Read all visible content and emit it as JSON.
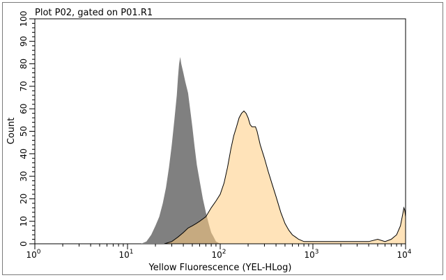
{
  "chart_data": {
    "type": "area",
    "title": "Plot P02, gated on P01.R1",
    "xlabel": "Yellow Fluorescence (YEL-HLog)",
    "ylabel": "Count",
    "x_scale": "log",
    "xlim": [
      1,
      10000
    ],
    "ylim": [
      0,
      100
    ],
    "x_ticks": [
      {
        "value": 1,
        "base": "10",
        "exp": "0"
      },
      {
        "value": 10,
        "base": "10",
        "exp": "1"
      },
      {
        "value": 100,
        "base": "10",
        "exp": "2"
      },
      {
        "value": 1000,
        "base": "10",
        "exp": "3"
      },
      {
        "value": 10000,
        "base": "10",
        "exp": "4"
      }
    ],
    "y_ticks": [
      0,
      10,
      20,
      30,
      40,
      50,
      60,
      70,
      80,
      90,
      100
    ],
    "grid": false,
    "series": [
      {
        "color": "#808080",
        "outline": false,
        "points": [
          [
            10,
            0
          ],
          [
            14,
            0
          ],
          [
            16,
            1
          ],
          [
            18,
            4
          ],
          [
            20,
            8
          ],
          [
            22,
            12
          ],
          [
            24,
            18
          ],
          [
            26,
            25
          ],
          [
            28,
            34
          ],
          [
            30,
            44
          ],
          [
            32,
            55
          ],
          [
            34,
            66
          ],
          [
            35,
            74
          ],
          [
            36,
            80
          ],
          [
            37,
            83
          ],
          [
            38,
            80
          ],
          [
            40,
            76
          ],
          [
            42,
            72
          ],
          [
            45,
            67
          ],
          [
            48,
            58
          ],
          [
            50,
            52
          ],
          [
            53,
            43
          ],
          [
            56,
            35
          ],
          [
            60,
            28
          ],
          [
            65,
            20
          ],
          [
            70,
            14
          ],
          [
            75,
            9
          ],
          [
            80,
            5
          ],
          [
            85,
            3
          ],
          [
            90,
            1
          ],
          [
            100,
            0
          ],
          [
            120,
            0
          ]
        ]
      },
      {
        "color": "#ffcc80",
        "outline": true,
        "points": [
          [
            25,
            0
          ],
          [
            30,
            1
          ],
          [
            35,
            3
          ],
          [
            40,
            5
          ],
          [
            45,
            7
          ],
          [
            50,
            8
          ],
          [
            55,
            9
          ],
          [
            60,
            10
          ],
          [
            70,
            12
          ],
          [
            80,
            16
          ],
          [
            90,
            19
          ],
          [
            100,
            22
          ],
          [
            110,
            27
          ],
          [
            120,
            34
          ],
          [
            130,
            42
          ],
          [
            140,
            48
          ],
          [
            150,
            52
          ],
          [
            160,
            56
          ],
          [
            170,
            58
          ],
          [
            180,
            59
          ],
          [
            190,
            58
          ],
          [
            200,
            56
          ],
          [
            210,
            53
          ],
          [
            220,
            52
          ],
          [
            230,
            52
          ],
          [
            240,
            52
          ],
          [
            250,
            50
          ],
          [
            270,
            44
          ],
          [
            300,
            38
          ],
          [
            330,
            32
          ],
          [
            360,
            27
          ],
          [
            400,
            21
          ],
          [
            450,
            14
          ],
          [
            500,
            9
          ],
          [
            550,
            6
          ],
          [
            600,
            4
          ],
          [
            650,
            3
          ],
          [
            700,
            2
          ],
          [
            800,
            1
          ],
          [
            1000,
            1
          ],
          [
            1500,
            1
          ],
          [
            2000,
            1
          ],
          [
            3000,
            1
          ],
          [
            4000,
            1
          ],
          [
            5000,
            2
          ],
          [
            6000,
            1
          ],
          [
            7000,
            2
          ],
          [
            8000,
            4
          ],
          [
            8800,
            8
          ],
          [
            9300,
            13
          ],
          [
            9600,
            16
          ],
          [
            9800,
            15
          ],
          [
            10000,
            12
          ]
        ]
      }
    ]
  }
}
